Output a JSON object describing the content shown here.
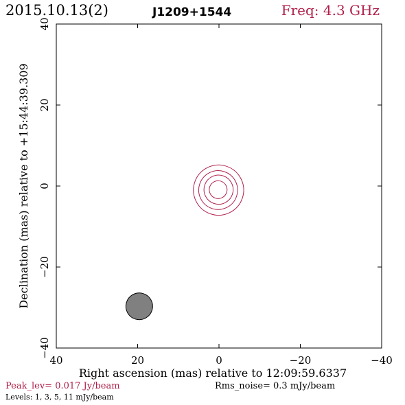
{
  "header": {
    "date": "2015.10.13(2)",
    "source": "J1209+1544",
    "freq": "Freq: 4.3 GHz"
  },
  "footer": {
    "peak": "Peak_lev=  0.017 Jy/beam",
    "rms": "Rms_noise=  0.3 mJy/beam",
    "levels": "Levels:   1,   3,   5,  11 mJy/beam"
  },
  "colors": {
    "contour": "#b0204a",
    "beam_fill": "#808080",
    "axis": "#000000"
  },
  "chart_data": {
    "type": "contour",
    "title": "J1209+1544",
    "xlabel": "Right ascension (mas) relative to 12:09:59.6337",
    "ylabel": "Declination (mas) relative to +15:44:39.309",
    "xlim": [
      40,
      -40
    ],
    "ylim": [
      -40,
      40
    ],
    "xticks": [
      40,
      20,
      0,
      -20,
      -40
    ],
    "yticks": [
      -40,
      -20,
      0,
      20,
      40
    ],
    "xtick_labels": [
      "40",
      "20",
      "0",
      "−20",
      "−40"
    ],
    "ytick_labels": [
      "−40",
      "−20",
      "0",
      "20",
      "40"
    ],
    "contour_levels_mJy": [
      1,
      3,
      5,
      11
    ],
    "contours": [
      {
        "level": 1,
        "cx": 0.1,
        "cy": -1.0,
        "a": 15.6,
        "b": 6.2,
        "pa_deg": 64
      },
      {
        "level": 3,
        "cx": 0.2,
        "cy": -1.0,
        "a": 12.9,
        "b": 4.8,
        "pa_deg": 64
      },
      {
        "level": 5,
        "cx": 0.1,
        "cy": -0.9,
        "a": 10.0,
        "b": 3.6,
        "pa_deg": 64
      },
      {
        "level": 11,
        "cx": 0.2,
        "cy": -0.9,
        "a": 6.0,
        "b": 2.2,
        "pa_deg": 64
      }
    ],
    "beam": {
      "cx": 19.6,
      "cy": -29.7,
      "a": 8.0,
      "b": 3.3,
      "pa_deg": 60
    },
    "peak_Jy_per_beam": 0.017,
    "rms_mJy_per_beam": 0.3,
    "grid": false
  }
}
